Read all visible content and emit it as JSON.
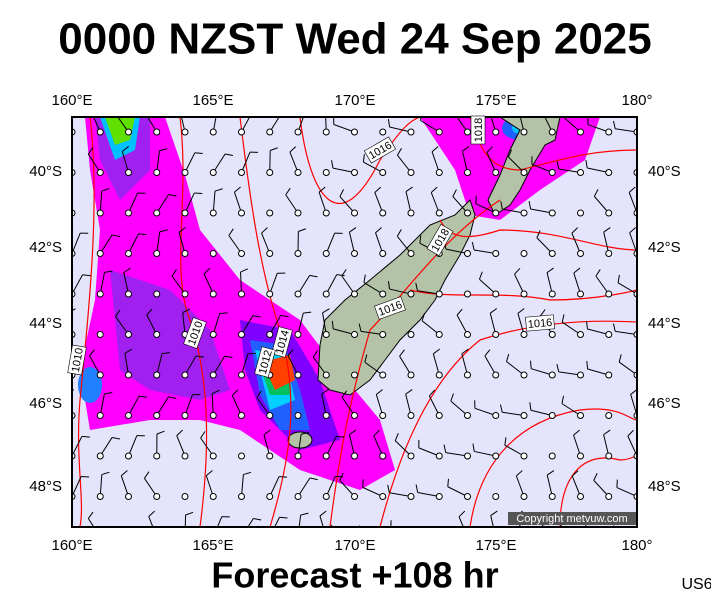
{
  "header": {
    "title": "0000 NZST Wed 24 Sep 2025"
  },
  "map": {
    "lon_labels": [
      "160°E",
      "165°E",
      "170°E",
      "175°E",
      "180°"
    ],
    "lat_labels": [
      "40°S",
      "42°S",
      "44°S",
      "46°S",
      "48°S"
    ],
    "contour_labels": [
      1016,
      1018,
      1018,
      1016,
      1016,
      1014,
      1012,
      1010,
      1010
    ],
    "copyright": "Copyright metvuw.com"
  },
  "footer": {
    "forecast": "Forecast +108 hr",
    "code": "US6"
  }
}
